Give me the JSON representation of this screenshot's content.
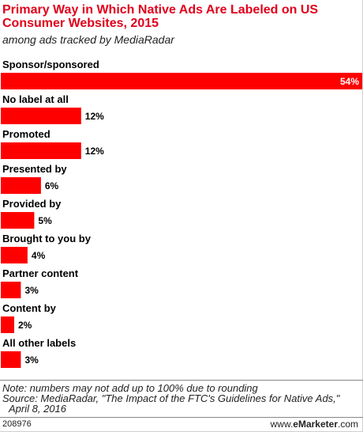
{
  "title": "Primary Way in Which Native Ads Are Labeled on US Consumer Websites, 2015",
  "subtitle": "among ads tracked by MediaRadar",
  "chart_data": {
    "type": "bar",
    "orientation": "horizontal",
    "categories": [
      "Sponsor/sponsored",
      "No label at all",
      "Promoted",
      "Presented by",
      "Provided by",
      "Brought to you by",
      "Partner content",
      "Content by",
      "All other labels"
    ],
    "values": [
      54,
      12,
      12,
      6,
      5,
      4,
      3,
      2,
      3
    ],
    "value_labels": [
      "54%",
      "12%",
      "12%",
      "6%",
      "5%",
      "4%",
      "3%",
      "2%",
      "3%"
    ],
    "unit": "%",
    "bar_color": "#ff0000",
    "xlim": [
      0,
      54
    ],
    "grid": false,
    "legend": "none"
  },
  "footer": {
    "note_lines": [
      "Note: numbers may not add up to 100% due to rounding",
      "Source: MediaRadar, \"The Impact of the FTC's Guidelines for Native Ads,\"",
      "April 8, 2016"
    ],
    "chart_id": "208976",
    "brand_prefix": "www.",
    "brand_name": "eMarketer",
    "brand_suffix": ".com"
  }
}
